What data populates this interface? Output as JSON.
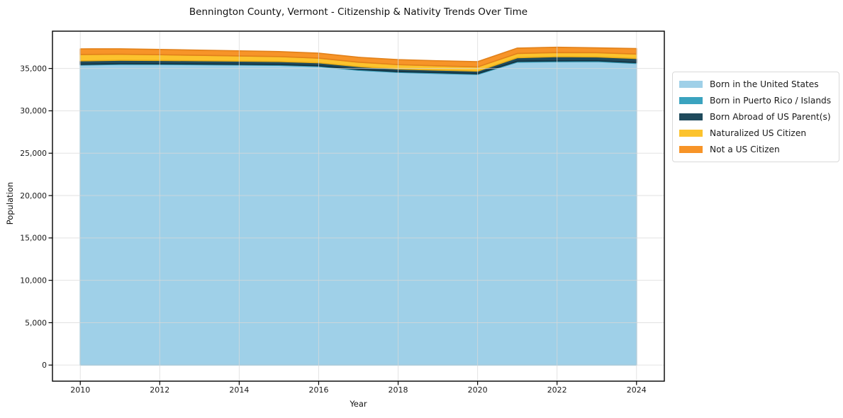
{
  "chart_data": {
    "type": "area",
    "stacked": true,
    "title": "Bennington County, Vermont - Citizenship & Nativity Trends Over Time",
    "xlabel": "Year",
    "ylabel": "Population",
    "x": [
      2010,
      2011,
      2012,
      2013,
      2014,
      2015,
      2016,
      2017,
      2018,
      2019,
      2020,
      2021,
      2022,
      2023,
      2024
    ],
    "series": [
      {
        "name": "Born in the United States",
        "color": "#9fd0e8",
        "edge_color": "#85bfdc",
        "values": [
          35400,
          35480,
          35470,
          35440,
          35410,
          35370,
          35230,
          34800,
          34540,
          34420,
          34300,
          35750,
          35800,
          35820,
          35600
        ]
      },
      {
        "name": "Born in Puerto Rico / Islands",
        "color": "#3aa3bf",
        "edge_color": "#2d8fa9",
        "values": [
          90,
          90,
          90,
          90,
          90,
          90,
          90,
          90,
          90,
          90,
          90,
          100,
          100,
          100,
          100
        ]
      },
      {
        "name": "Born Abroad of US Parent(s)",
        "color": "#1f4a5c",
        "edge_color": "#14303d",
        "values": [
          410,
          400,
          390,
          380,
          370,
          360,
          350,
          330,
          310,
          300,
          300,
          420,
          490,
          440,
          480
        ]
      },
      {
        "name": "Naturalized US Citizen",
        "color": "#fcc32d",
        "edge_color": "#e9ae18",
        "values": [
          750,
          710,
          670,
          640,
          610,
          580,
          550,
          520,
          510,
          500,
          490,
          500,
          490,
          500,
          520
        ]
      },
      {
        "name": "Not a US Citizen",
        "color": "#f79428",
        "edge_color": "#e2811a",
        "values": [
          660,
          640,
          620,
          610,
          600,
          590,
          580,
          580,
          590,
          600,
          620,
          630,
          620,
          570,
          650
        ]
      }
    ],
    "xlim": [
      2009.3,
      2024.7
    ],
    "ylim": [
      -1900,
      39400
    ],
    "xticks": [
      2010,
      2012,
      2014,
      2016,
      2018,
      2020,
      2022,
      2024
    ],
    "yticks": [
      0,
      5000,
      10000,
      15000,
      20000,
      25000,
      30000,
      35000
    ],
    "ytick_labels": [
      "0",
      "5,000",
      "10,000",
      "15,000",
      "20,000",
      "25,000",
      "30,000",
      "35,000"
    ],
    "grid": true,
    "legend_position": "right"
  },
  "colors": {
    "grid": "#d9d9d9",
    "spine": "#000000",
    "tick_text": "#1a1a1a",
    "background": "#ffffff"
  }
}
